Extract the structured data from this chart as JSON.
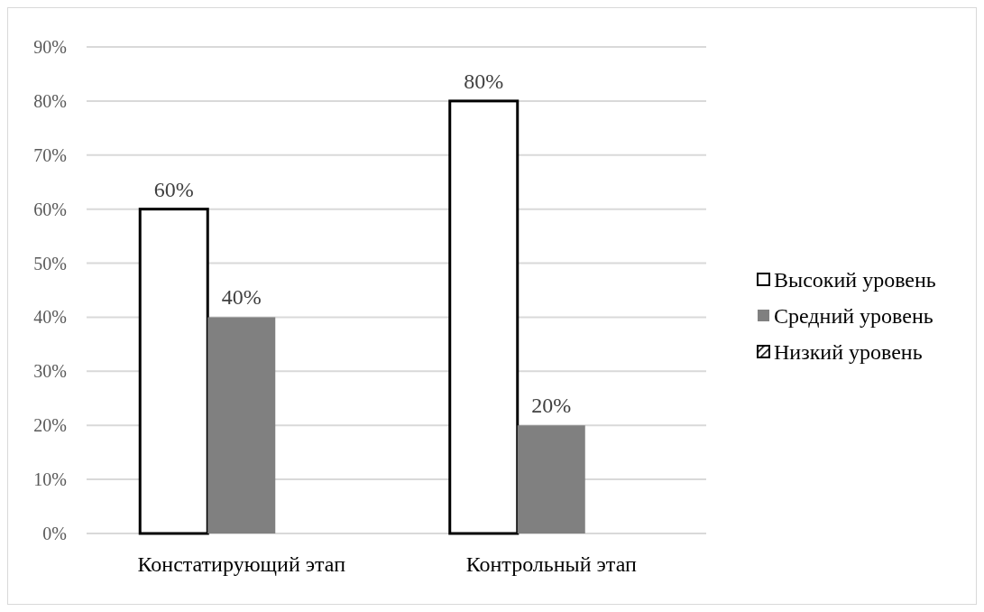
{
  "chart_data": {
    "type": "bar",
    "categories": [
      "Констатирующий этап",
      "Контрольный этап"
    ],
    "series": [
      {
        "name": "Высокий уровень",
        "color": "#ffffff",
        "values": [
          60,
          80
        ],
        "value_labels": [
          "60%",
          "80%"
        ]
      },
      {
        "name": "Средний уровень",
        "color": "#808080",
        "values": [
          40,
          20
        ],
        "value_labels": [
          "40%",
          "20%"
        ]
      },
      {
        "name": "Низкий уровень",
        "color": "#000000",
        "values": [
          0,
          0
        ],
        "value_labels": [
          null,
          null
        ]
      }
    ],
    "ylim": [
      0,
      90
    ],
    "yticks": [
      {
        "value": 0,
        "label": "0%"
      },
      {
        "value": 10,
        "label": "10%"
      },
      {
        "value": 20,
        "label": "20%"
      },
      {
        "value": 30,
        "label": "30%"
      },
      {
        "value": 40,
        "label": "40%"
      },
      {
        "value": 50,
        "label": "50%"
      },
      {
        "value": 60,
        "label": "60%"
      },
      {
        "value": 70,
        "label": "70%"
      },
      {
        "value": 80,
        "label": "80%"
      },
      {
        "value": 90,
        "label": "90%"
      }
    ],
    "grid": "y",
    "legend": "right"
  }
}
